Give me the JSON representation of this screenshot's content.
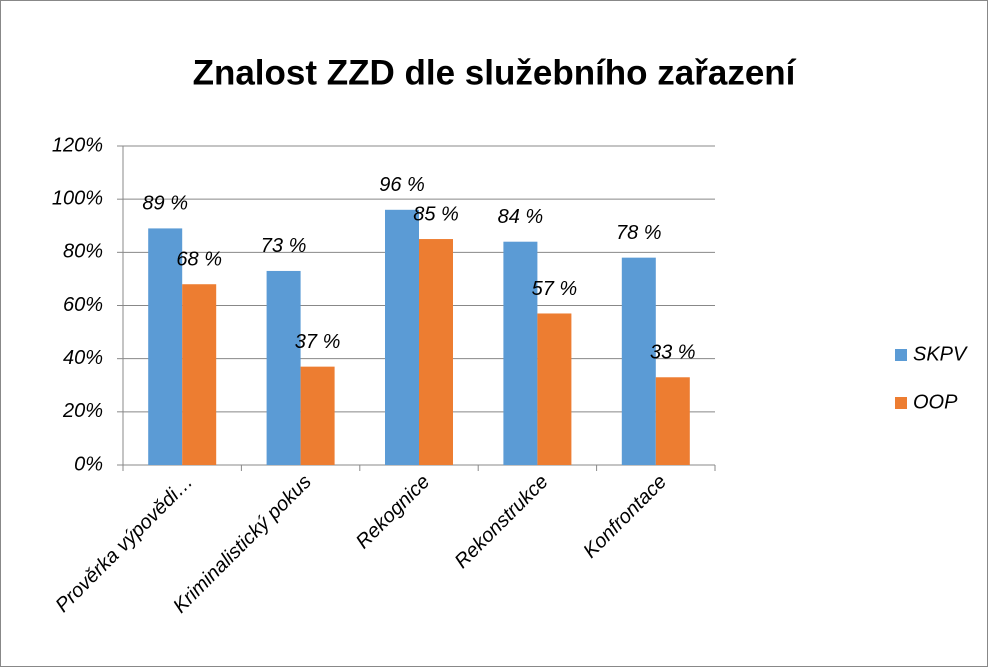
{
  "chart_data": {
    "type": "bar",
    "title": "Znalost ZZD dle služebního zařazení",
    "categories": [
      "Prověrka výpovědi…",
      "Kriminalistický pokus",
      "Rekognice",
      "Rekonstrukce",
      "Konfrontace"
    ],
    "series": [
      {
        "name": "SKPV",
        "color": "#5b9bd5",
        "values": [
          89,
          73,
          96,
          84,
          78
        ],
        "value_labels": [
          "89 %",
          "73 %",
          "96 %",
          "84 %",
          "78 %"
        ]
      },
      {
        "name": "OOP",
        "color": "#ed7d31",
        "values": [
          68,
          37,
          85,
          57,
          33
        ],
        "value_labels": [
          "68 %",
          "37 %",
          "85 %",
          "57 %",
          "33 %"
        ]
      }
    ],
    "ylim": [
      0,
      120
    ],
    "yticks": [
      {
        "value": 0,
        "label": "0%"
      },
      {
        "value": 20,
        "label": "20%"
      },
      {
        "value": 40,
        "label": "40%"
      },
      {
        "value": 60,
        "label": "60%"
      },
      {
        "value": 80,
        "label": "80%"
      },
      {
        "value": 100,
        "label": "100%"
      },
      {
        "value": 120,
        "label": "120%"
      }
    ],
    "grid": true,
    "legend": "right"
  }
}
